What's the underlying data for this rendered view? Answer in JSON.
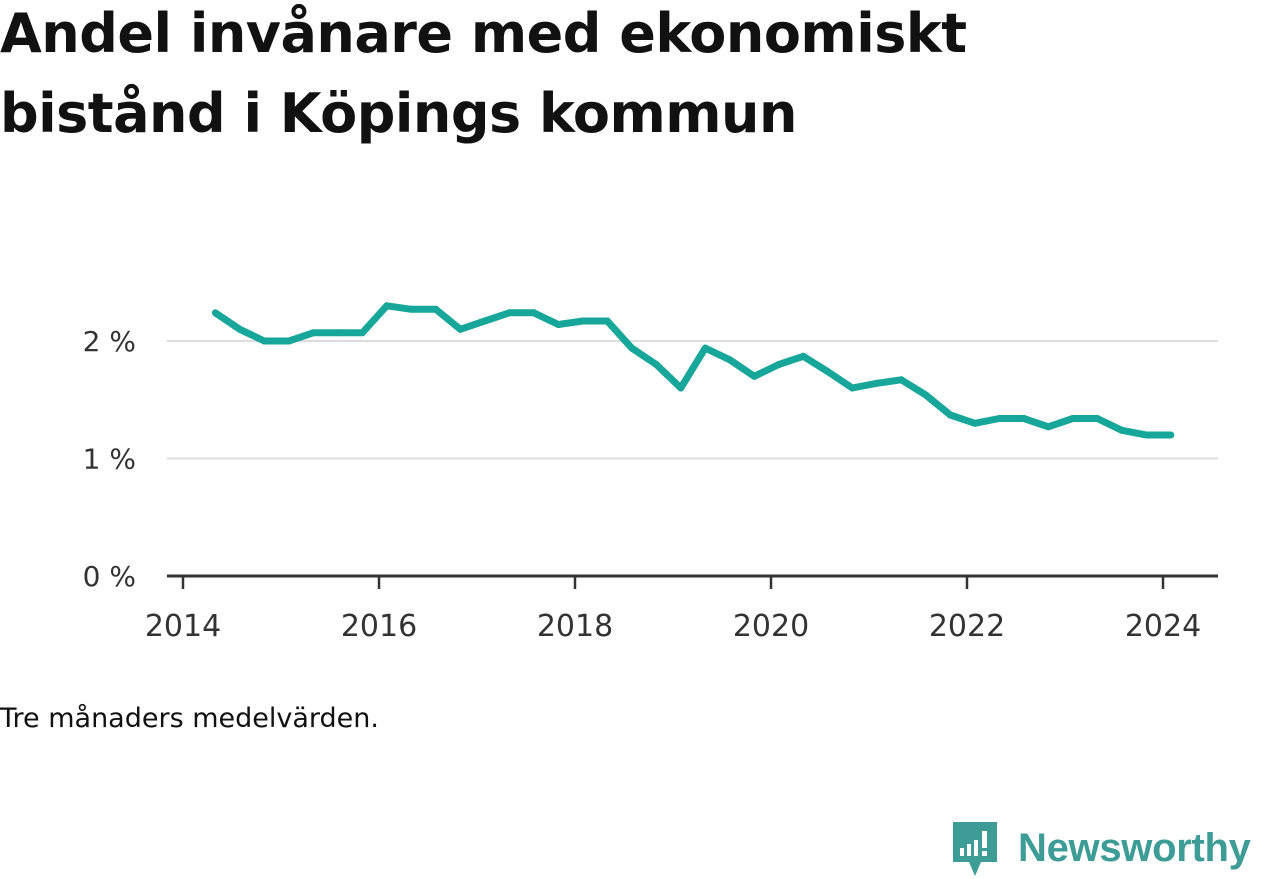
{
  "chart_data": {
    "type": "line",
    "title": "Andel invånare med ekonomiskt bistånd i Köpings kommun",
    "note": "Tre månaders medelvärden.",
    "x_ticks": [
      "2014",
      "2016",
      "2018",
      "2020",
      "2022",
      "2024"
    ],
    "y_ticks": [
      "0 %",
      "1 %",
      "2 %"
    ],
    "xlim": [
      2014.0,
      2024.5
    ],
    "ylim": [
      0,
      2.5
    ],
    "grid": true,
    "series": [
      {
        "color": "#16a79a",
        "x": [
          2014.33,
          2014.58,
          2014.83,
          2015.08,
          2015.33,
          2015.58,
          2015.83,
          2016.08,
          2016.33,
          2016.58,
          2016.83,
          2017.08,
          2017.33,
          2017.58,
          2017.83,
          2018.08,
          2018.33,
          2018.58,
          2018.83,
          2019.08,
          2019.33,
          2019.58,
          2019.83,
          2020.08,
          2020.33,
          2020.58,
          2020.83,
          2021.08,
          2021.33,
          2021.58,
          2021.83,
          2022.08,
          2022.33,
          2022.58,
          2022.83,
          2023.08,
          2023.33,
          2023.58,
          2023.83,
          2024.08
        ],
        "values": [
          2.24,
          2.1,
          2.0,
          2.0,
          2.07,
          2.07,
          2.07,
          2.3,
          2.27,
          2.27,
          2.1,
          2.17,
          2.24,
          2.24,
          2.14,
          2.17,
          2.17,
          1.94,
          1.8,
          1.6,
          1.94,
          1.84,
          1.7,
          1.8,
          1.87,
          1.74,
          1.6,
          1.64,
          1.67,
          1.54,
          1.37,
          1.3,
          1.34,
          1.34,
          1.27,
          1.34,
          1.34,
          1.24,
          1.2,
          1.2
        ]
      }
    ]
  },
  "brand": {
    "name": "Newsworthy",
    "color": "#3d9c96"
  }
}
